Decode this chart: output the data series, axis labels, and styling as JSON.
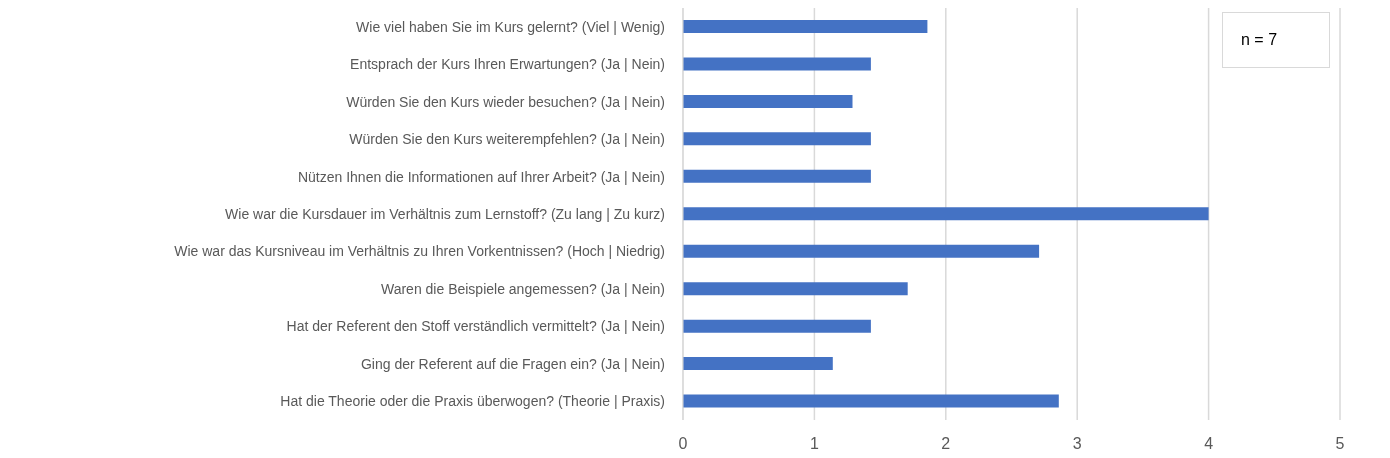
{
  "chart_data": {
    "type": "bar",
    "orientation": "horizontal",
    "categories": [
      "Wie viel haben Sie im Kurs gelernt? (Viel | Wenig)",
      "Entsprach der Kurs Ihren Erwartungen? (Ja | Nein)",
      "Würden Sie den Kurs wieder besuchen? (Ja | Nein)",
      "Würden Sie den Kurs weiterempfehlen? (Ja | Nein)",
      "Nützen Ihnen die Informationen auf Ihrer Arbeit? (Ja | Nein)",
      "Wie war die Kursdauer im Verhältnis zum Lernstoff? (Zu lang | Zu kurz)",
      "Wie war das Kursniveau im Verhältnis zu Ihren Vorkentnissen? (Hoch | Niedrig)",
      "Waren die Beispiele angemessen? (Ja | Nein)",
      "Hat der Referent den Stoff verständlich vermittelt? (Ja | Nein)",
      "Ging der Referent auf die Fragen ein? (Ja | Nein)",
      "Hat die Theorie oder die Praxis überwogen? (Theorie | Praxis)"
    ],
    "values": [
      1.86,
      1.43,
      1.29,
      1.43,
      1.43,
      4,
      2.71,
      1.71,
      1.43,
      1.14,
      2.86
    ],
    "color": "#4472c4",
    "xlim": [
      0,
      5
    ],
    "xticks": [
      0,
      1,
      2,
      3,
      4,
      5
    ],
    "grid": "x",
    "annotations": [
      "n = 7"
    ]
  }
}
